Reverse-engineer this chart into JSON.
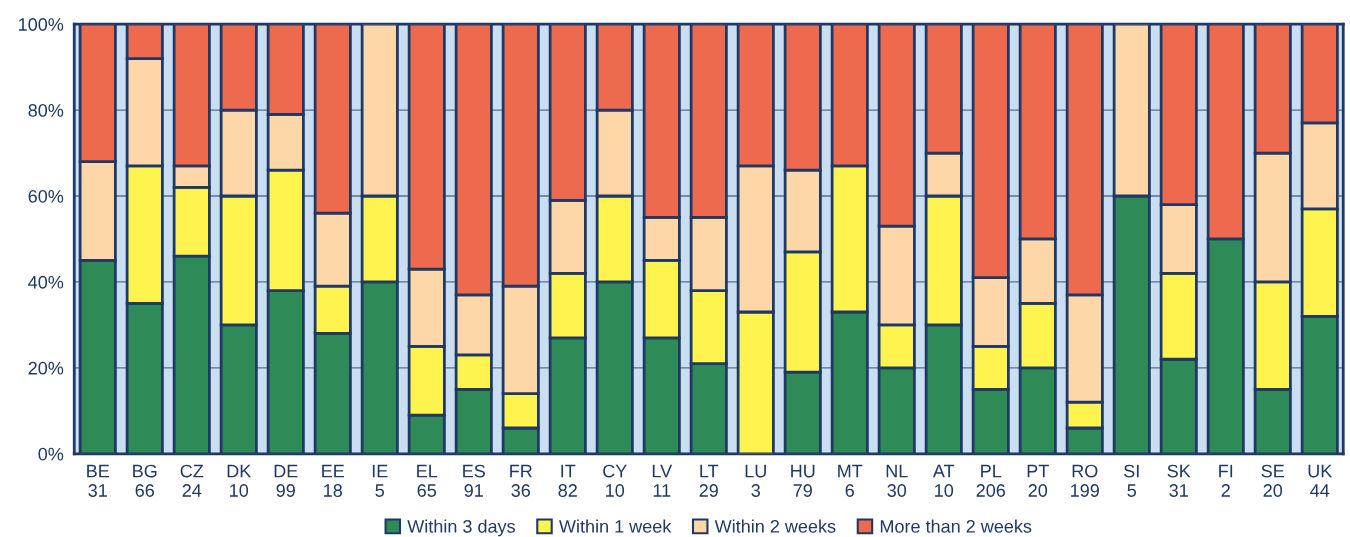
{
  "chart_data": {
    "type": "bar",
    "stacked": true,
    "categories": [
      "BE\n31",
      "BG\n66",
      "CZ\n24",
      "DK\n10",
      "DE\n99",
      "EE\n18",
      "IE\n5",
      "EL\n65",
      "ES\n91",
      "FR\n36",
      "IT\n82",
      "CY\n10",
      "LV\n11",
      "LT\n29",
      "LU\n3",
      "HU\n79",
      "MT\n6",
      "NL\n30",
      "AT\n10",
      "PL\n206",
      "PT\n20",
      "RO\n199",
      "SI\n5",
      "SK\n31",
      "FI\n2",
      "SE\n20",
      "UK\n44"
    ],
    "series": [
      {
        "name": "Within 3 days",
        "color": "#2e8b57",
        "values": [
          45,
          35,
          46,
          30,
          38,
          28,
          40,
          9,
          15,
          6,
          27,
          40,
          27,
          21,
          0,
          19,
          33,
          20,
          30,
          15,
          20,
          6,
          60,
          22,
          50,
          15,
          32
        ]
      },
      {
        "name": "Within 1 week",
        "color": "#fff44f",
        "values": [
          0,
          32,
          16,
          30,
          28,
          11,
          20,
          16,
          8,
          8,
          15,
          20,
          18,
          17,
          33,
          28,
          34,
          10,
          30,
          10,
          15,
          6,
          0,
          20,
          0,
          25,
          25
        ]
      },
      {
        "name": "Within 2 weeks",
        "color": "#fdd7a8",
        "values": [
          23,
          25,
          5,
          20,
          13,
          17,
          40,
          18,
          14,
          25,
          17,
          20,
          10,
          17,
          34,
          19,
          0,
          23,
          10,
          16,
          15,
          25,
          40,
          16,
          0,
          30,
          20
        ]
      },
      {
        "name": "More than 2 weeks",
        "color": "#ee6a4f",
        "values": [
          32,
          8,
          33,
          20,
          21,
          44,
          0,
          57,
          63,
          61,
          41,
          20,
          45,
          45,
          33,
          34,
          33,
          47,
          30,
          59,
          50,
          63,
          0,
          42,
          50,
          30,
          23
        ]
      }
    ],
    "ylim": [
      0,
      100
    ],
    "yticks": [
      {
        "value": 0,
        "label": "0%"
      },
      {
        "value": 20,
        "label": "20%"
      },
      {
        "value": 40,
        "label": "40%"
      },
      {
        "value": 60,
        "label": "60%"
      },
      {
        "value": 80,
        "label": "80%"
      },
      {
        "value": 100,
        "label": "100%"
      }
    ],
    "bands": [
      {
        "axis": "y",
        "from": 0,
        "to": 100,
        "color": "#c9def0"
      }
    ],
    "grid": "y",
    "legend": "bottom"
  }
}
